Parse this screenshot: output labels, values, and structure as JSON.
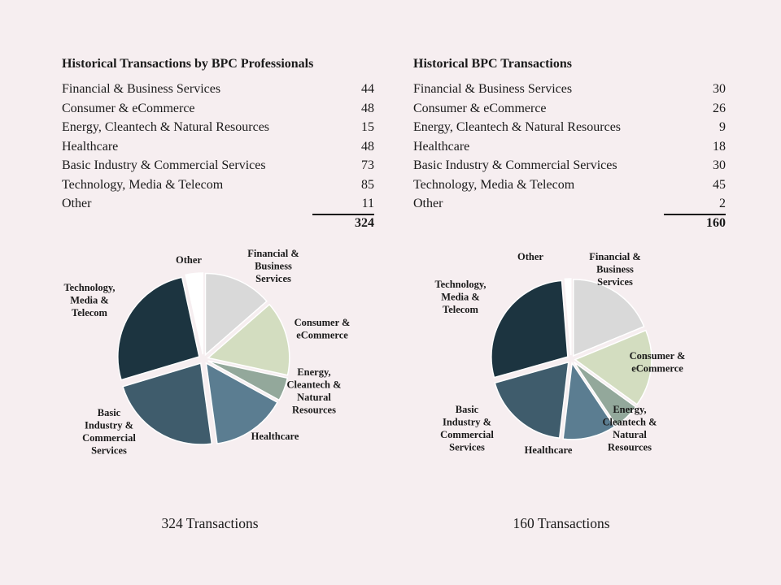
{
  "chart_data": [
    {
      "type": "pie",
      "title": "Historical Transactions by BPC Professionals",
      "categories": [
        "Financial & Business Services",
        "Consumer & eCommerce",
        "Energy, Cleantech & Natural Resources",
        "Healthcare",
        "Basic Industry & Commercial Services",
        "Technology, Media & Telecom",
        "Other"
      ],
      "values": [
        44,
        48,
        15,
        48,
        73,
        85,
        11
      ],
      "pie_labels": [
        [
          "Financial &",
          "Business",
          "Services"
        ],
        [
          "Consumer &",
          "eCommerce"
        ],
        [
          "Energy,",
          "Cleantech &",
          "Natural",
          "Resources"
        ],
        [
          "Healthcare"
        ],
        [
          "Basic",
          "Industry &",
          "Commercial",
          "Services"
        ],
        [
          "Technology,",
          "Media &",
          "Telecom"
        ],
        [
          "Other"
        ]
      ],
      "total": "324",
      "caption": "324 Transactions"
    },
    {
      "type": "pie",
      "title": "Historical BPC Transactions",
      "categories": [
        "Financial & Business Services",
        "Consumer & eCommerce",
        "Energy, Cleantech & Natural Resources",
        "Healthcare",
        "Basic Industry & Commercial Services",
        "Technology, Media & Telecom",
        "Other"
      ],
      "values": [
        30,
        26,
        9,
        18,
        30,
        45,
        2
      ],
      "pie_labels": [
        [
          "Financial &",
          "Business",
          "Services"
        ],
        [
          "Consumer &",
          "eCommerce"
        ],
        [
          "Energy,",
          "Cleantech &",
          "Natural",
          "Resources"
        ],
        [
          "Healthcare"
        ],
        [
          "Basic",
          "Industry &",
          "Commercial",
          "Services"
        ],
        [
          "Technology,",
          "Media &",
          "Telecom"
        ],
        [
          "Other"
        ]
      ],
      "total": "160",
      "caption": "160 Transactions"
    }
  ],
  "colors": [
    "#d9d9d9",
    "#d3ddc0",
    "#93a89b",
    "#5b7d91",
    "#3f5c6c",
    "#1c3440",
    "#ffffff"
  ]
}
